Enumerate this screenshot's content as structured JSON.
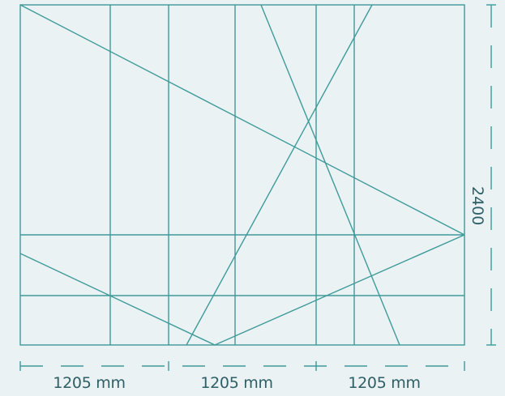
{
  "dimensions": {
    "bottom": [
      {
        "label": "1205 mm"
      },
      {
        "label": "1205 mm"
      },
      {
        "label": "1205 mm"
      }
    ],
    "right": {
      "label": "2400"
    }
  },
  "colors": {
    "line": "#3f9a9a",
    "text": "#2f5f66",
    "background": "#eaf2f4"
  }
}
